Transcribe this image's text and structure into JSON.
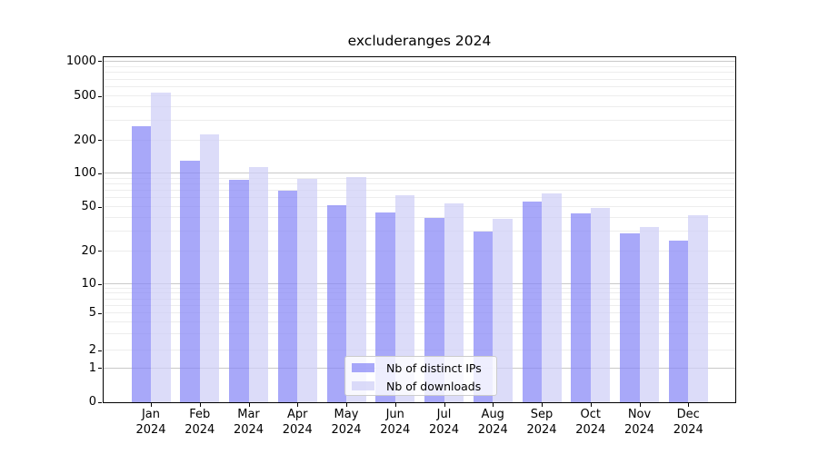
{
  "title": "excluderanges 2024",
  "y_axis": {
    "tick_labels": [
      "1000",
      "500",
      "200",
      "100",
      "50",
      "20",
      "10",
      "5",
      "2",
      "1",
      "0"
    ]
  },
  "x_axis": {
    "months": [
      "Jan",
      "Feb",
      "Mar",
      "Apr",
      "May",
      "Jun",
      "Jul",
      "Aug",
      "Sep",
      "Oct",
      "Nov",
      "Dec"
    ],
    "year": "2024"
  },
  "legend": {
    "items": [
      {
        "label": "Nb of distinct IPs",
        "color": "rgba(134,134,246,0.72)"
      },
      {
        "label": "Nb of downloads",
        "color": "rgba(206,206,246,0.72)"
      }
    ]
  },
  "chart_data": {
    "type": "bar",
    "title": "excluderanges 2024",
    "categories": [
      "Jan 2024",
      "Feb 2024",
      "Mar 2024",
      "Apr 2024",
      "May 2024",
      "Jun 2024",
      "Jul 2024",
      "Aug 2024",
      "Sep 2024",
      "Oct 2024",
      "Nov 2024",
      "Dec 2024"
    ],
    "series": [
      {
        "name": "Nb of distinct IPs",
        "color": "rgba(134,134,246,0.72)",
        "values": [
          270,
          130,
          88,
          70,
          52,
          45,
          40,
          30,
          56,
          44,
          29,
          25
        ]
      },
      {
        "name": "Nb of downloads",
        "color": "rgba(206,206,246,0.72)",
        "values": [
          540,
          228,
          115,
          90,
          93,
          64,
          54,
          39,
          66,
          49,
          33,
          42
        ]
      }
    ],
    "yticks": [
      0,
      1,
      2,
      5,
      10,
      20,
      50,
      100,
      200,
      500,
      1000
    ],
    "yscale": "log-like with compressed linear region near zero",
    "ylim": [
      0,
      1050
    ],
    "grid": true,
    "legend_position": "lower center",
    "bar_colors_rendered": {
      "distinct_ips": "#a8a8f8",
      "downloads": "#dcdcf8"
    }
  }
}
